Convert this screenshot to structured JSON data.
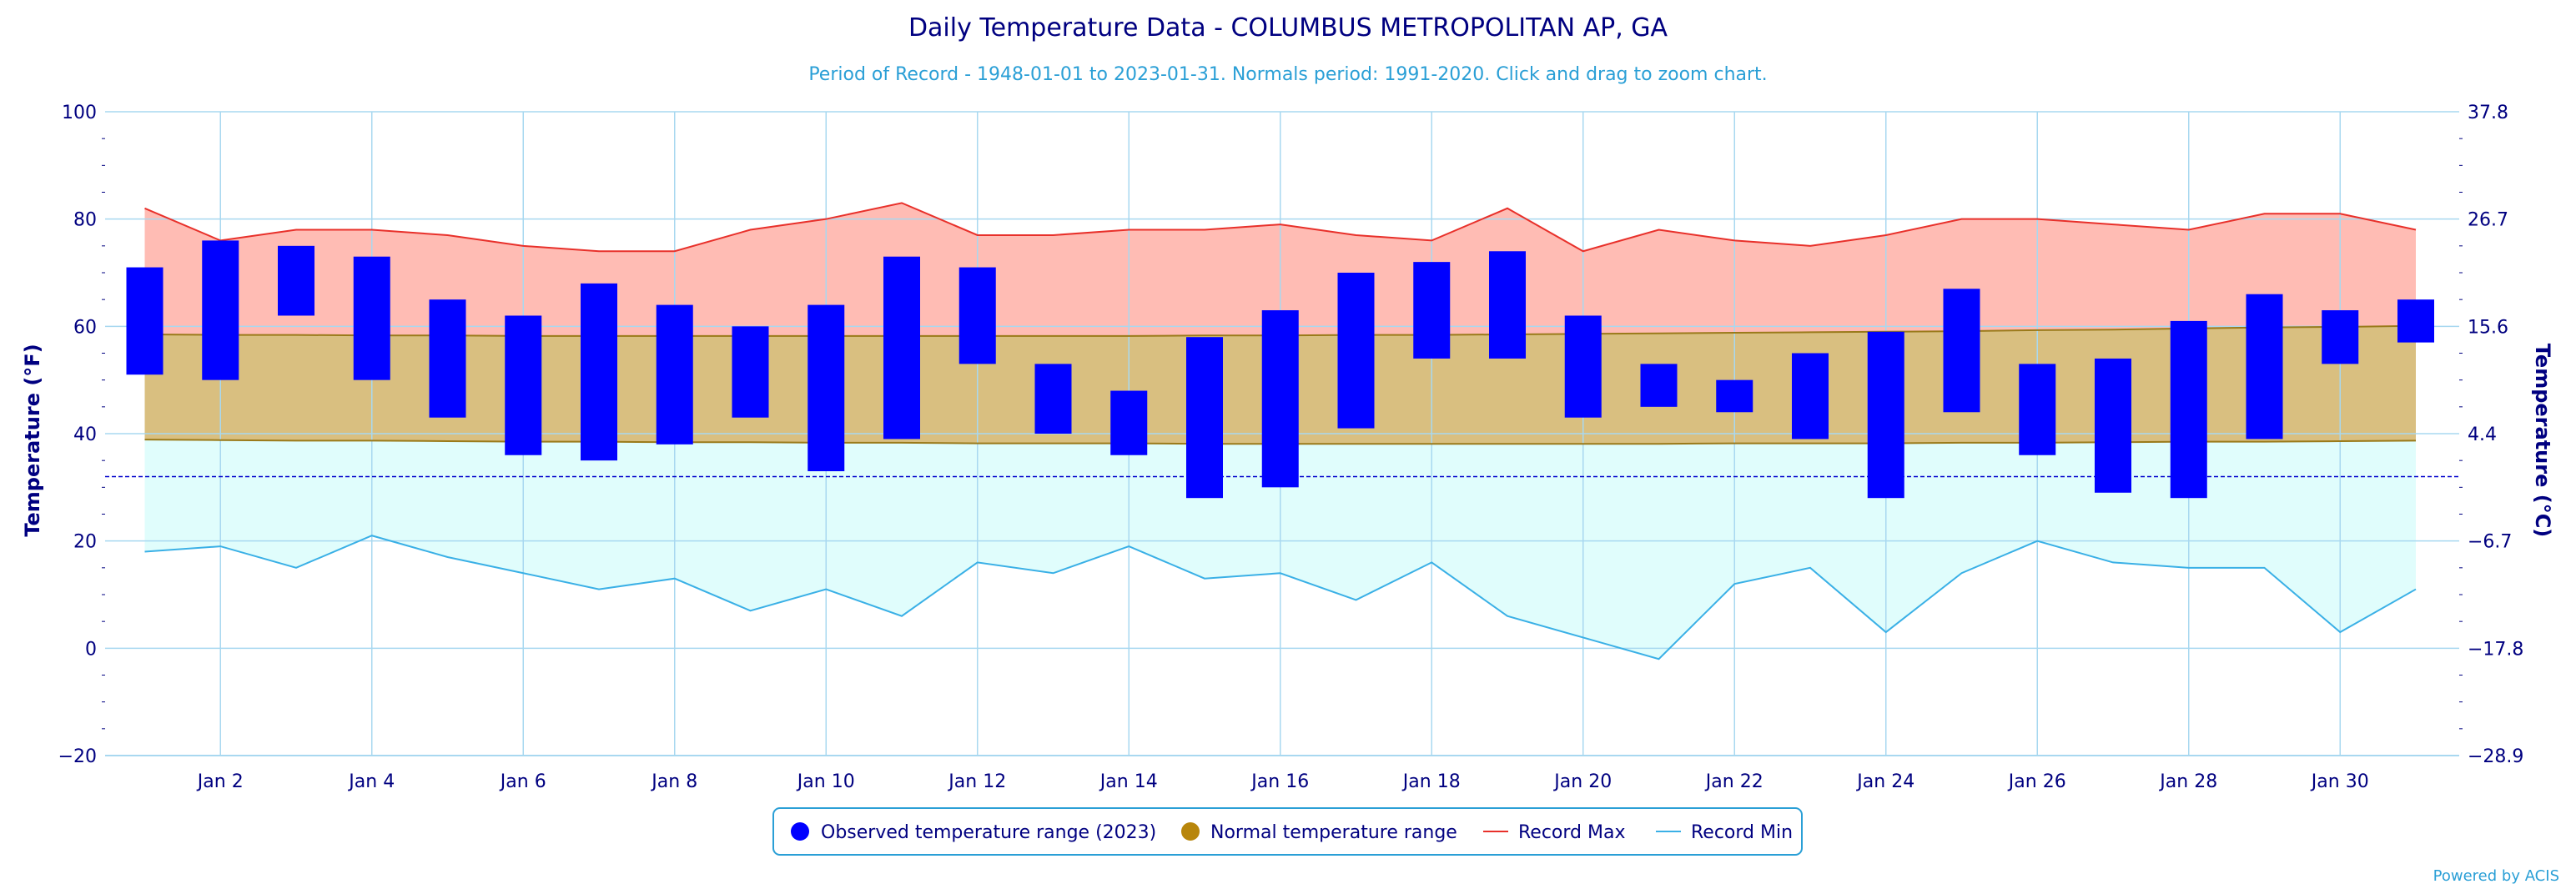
{
  "chart_data": {
    "type": "bar",
    "title": "Daily Temperature Data - COLUMBUS METROPOLITAN AP, GA",
    "subtitle": "Period of Record - 1948-01-01 to 2023-01-31. Normals period: 1991-2020. Click and drag to zoom chart.",
    "ylabel_left": "Temperature (°F)",
    "ylabel_right": "Temperature (°C)",
    "ylim": [
      -20,
      100
    ],
    "yticks_left": [
      "100",
      "80",
      "60",
      "40",
      "20",
      "0",
      "−20"
    ],
    "yticks_right": [
      "37.8",
      "26.7",
      "15.6",
      "4.4",
      "−6.7",
      "−17.8",
      "−28.9"
    ],
    "xticks": [
      "Jan 2",
      "Jan 4",
      "Jan 6",
      "Jan 8",
      "Jan 10",
      "Jan 12",
      "Jan 14",
      "Jan 16",
      "Jan 18",
      "Jan 20",
      "Jan 22",
      "Jan 24",
      "Jan 26",
      "Jan 28",
      "Jan 30"
    ],
    "days": [
      1,
      2,
      3,
      4,
      5,
      6,
      7,
      8,
      9,
      10,
      11,
      12,
      13,
      14,
      15,
      16,
      17,
      18,
      19,
      20,
      21,
      22,
      23,
      24,
      25,
      26,
      27,
      28,
      29,
      30,
      31
    ],
    "freezing_line": 32,
    "grid": true,
    "legend_position": "bottom-center",
    "series": [
      {
        "name": "Observed temperature range (2023)",
        "max": [
          71,
          76,
          75,
          73,
          65,
          62,
          68,
          64,
          60,
          64,
          73,
          71,
          53,
          48,
          58,
          63,
          70,
          72,
          74,
          62,
          53,
          50,
          55,
          59,
          67,
          53,
          54,
          61,
          66,
          63,
          65
        ],
        "min": [
          51,
          50,
          62,
          50,
          43,
          36,
          35,
          38,
          43,
          33,
          39,
          53,
          40,
          36,
          28,
          30,
          41,
          54,
          54,
          43,
          45,
          44,
          39,
          28,
          44,
          36,
          29,
          28,
          39,
          53,
          57
        ]
      },
      {
        "name": "Normal temperature range",
        "max": [
          58.5,
          58.4,
          58.4,
          58.3,
          58.3,
          58.2,
          58.2,
          58.2,
          58.2,
          58.2,
          58.2,
          58.2,
          58.2,
          58.2,
          58.3,
          58.3,
          58.4,
          58.4,
          58.5,
          58.6,
          58.7,
          58.8,
          58.9,
          59.0,
          59.1,
          59.3,
          59.4,
          59.6,
          59.8,
          59.9,
          60.1
        ],
        "min": [
          38.9,
          38.8,
          38.7,
          38.7,
          38.6,
          38.5,
          38.5,
          38.4,
          38.4,
          38.3,
          38.3,
          38.2,
          38.2,
          38.2,
          38.1,
          38.1,
          38.1,
          38.1,
          38.1,
          38.1,
          38.1,
          38.2,
          38.2,
          38.2,
          38.3,
          38.3,
          38.4,
          38.5,
          38.5,
          38.6,
          38.7
        ]
      },
      {
        "name": "Record Max",
        "values": [
          82,
          76,
          78,
          78,
          77,
          75,
          74,
          74,
          78,
          80,
          83,
          77,
          77,
          78,
          78,
          79,
          77,
          76,
          82,
          74,
          78,
          76,
          75,
          77,
          80,
          80,
          79,
          78,
          81,
          81,
          78
        ]
      },
      {
        "name": "Record Min",
        "values": [
          18,
          19,
          15,
          21,
          17,
          14,
          11,
          13,
          7,
          11,
          6,
          16,
          14,
          19,
          13,
          14,
          9,
          16,
          6,
          2,
          -2,
          12,
          15,
          3,
          14,
          20,
          16,
          15,
          15,
          3,
          11
        ]
      }
    ],
    "colors": {
      "observed": "#0000ff",
      "normal_fill": "#d9bf80",
      "normal_legend": "#b8860b",
      "normal_line": "#9a7a1a",
      "record_max_fill": "#ffbcb4",
      "record_max_line": "#e8302a",
      "record_min_fill": "#e0fdfc",
      "record_min_line": "#3ab0e6",
      "grid": "#a8d8f0",
      "freezing": "#0000cc"
    },
    "credit": "Powered by ACIS"
  }
}
